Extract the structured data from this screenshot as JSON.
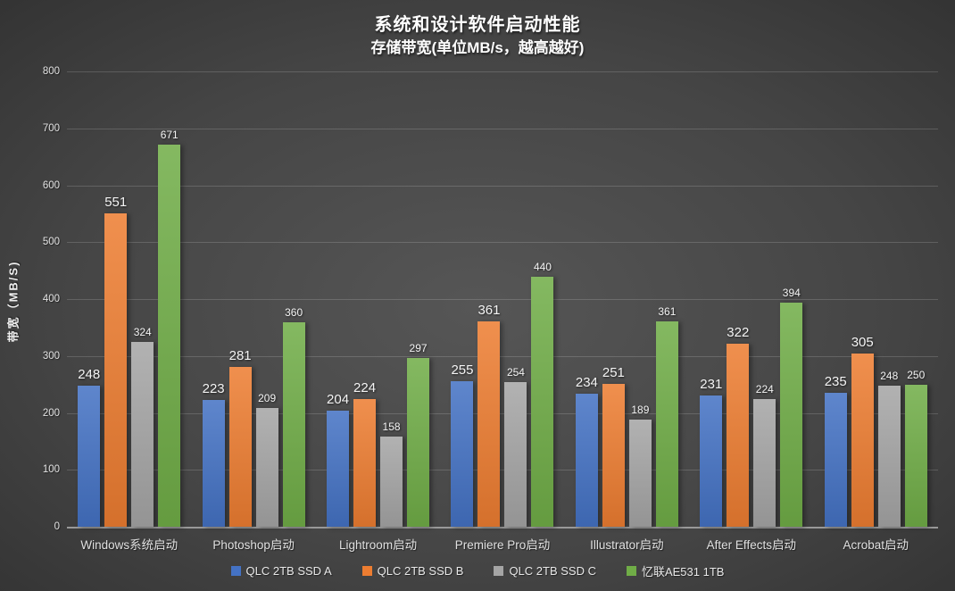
{
  "chart_data": {
    "type": "bar",
    "title": "系统和设计软件启动性能",
    "subtitle": "存储带宽(单位MB/s，越高越好)",
    "ylabel": "带宽（MB/S)",
    "ylim": [
      0,
      800
    ],
    "yticks": [
      0,
      100,
      200,
      300,
      400,
      500,
      600,
      700,
      800
    ],
    "grid": true,
    "legend_position": "bottom",
    "categories": [
      "Windows系统启动",
      "Photoshop启动",
      "Lightroom启动",
      "Premiere Pro启动",
      "Illustrator启动",
      "After Effects启动",
      "Acrobat启动"
    ],
    "series": [
      {
        "name": "QLC 2TB SSD A",
        "color": "#4472C4",
        "values": [
          248,
          223,
          204,
          255,
          234,
          231,
          235
        ]
      },
      {
        "name": "QLC 2TB SSD B",
        "color": "#ED7D31",
        "values": [
          551,
          281,
          224,
          361,
          251,
          322,
          305
        ]
      },
      {
        "name": "QLC 2TB SSD C",
        "color": "#A5A5A5",
        "values": [
          324,
          209,
          158,
          254,
          189,
          224,
          248
        ]
      },
      {
        "name": "忆联AE531 1TB",
        "color": "#70AD47",
        "values": [
          671,
          360,
          297,
          440,
          361,
          394,
          250
        ]
      }
    ]
  },
  "colors": {
    "background_center": "#565656",
    "background_edge": "#252525",
    "gridline": "rgba(255,255,255,0.16)",
    "axis_line": "#999999",
    "text": "#f0f0f0"
  }
}
